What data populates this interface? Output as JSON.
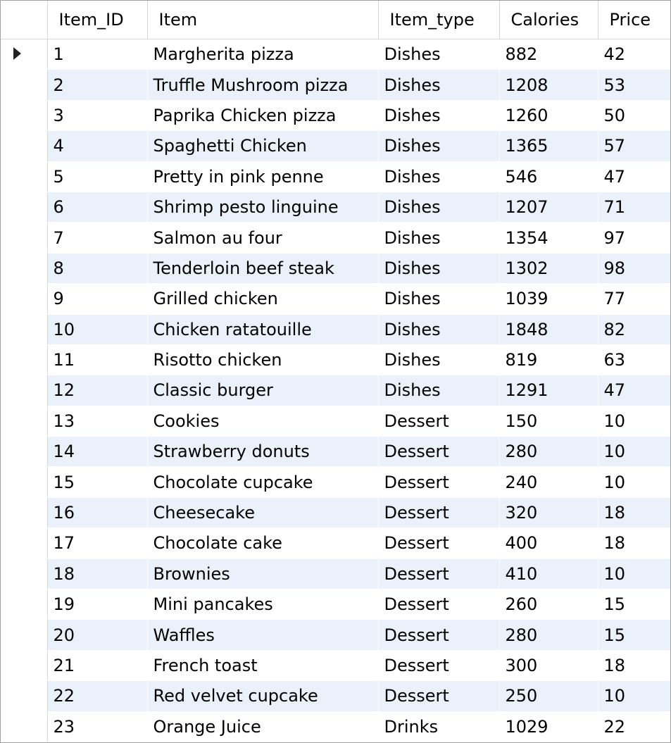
{
  "columns": [
    "Item_ID",
    "Item",
    "Item_type",
    "Calories",
    "Price"
  ],
  "current_row_indicator": "row-pointer-icon",
  "rows": [
    {
      "id": "1",
      "item": "Margherita pizza",
      "type": "Dishes",
      "calories": "882",
      "price": "42"
    },
    {
      "id": "2",
      "item": "Truffle Mushroom pizza",
      "type": "Dishes",
      "calories": "1208",
      "price": "53"
    },
    {
      "id": "3",
      "item": "Paprika Chicken pizza",
      "type": "Dishes",
      "calories": "1260",
      "price": "50"
    },
    {
      "id": "4",
      "item": "Spaghetti Chicken",
      "type": "Dishes",
      "calories": "1365",
      "price": "57"
    },
    {
      "id": "5",
      "item": "Pretty in pink penne",
      "type": "Dishes",
      "calories": "546",
      "price": "47"
    },
    {
      "id": "6",
      "item": "Shrimp pesto linguine",
      "type": "Dishes",
      "calories": "1207",
      "price": "71"
    },
    {
      "id": "7",
      "item": "Salmon au four",
      "type": "Dishes",
      "calories": "1354",
      "price": "97"
    },
    {
      "id": "8",
      "item": "Tenderloin beef steak",
      "type": "Dishes",
      "calories": "1302",
      "price": "98"
    },
    {
      "id": "9",
      "item": "Grilled chicken",
      "type": "Dishes",
      "calories": "1039",
      "price": "77"
    },
    {
      "id": "10",
      "item": "Chicken ratatouille",
      "type": "Dishes",
      "calories": "1848",
      "price": "82"
    },
    {
      "id": "11",
      "item": "Risotto chicken",
      "type": "Dishes",
      "calories": "819",
      "price": "63"
    },
    {
      "id": "12",
      "item": "Classic burger",
      "type": "Dishes",
      "calories": "1291",
      "price": "47"
    },
    {
      "id": "13",
      "item": "Cookies",
      "type": "Dessert",
      "calories": "150",
      "price": "10"
    },
    {
      "id": "14",
      "item": "Strawberry donuts",
      "type": "Dessert",
      "calories": "280",
      "price": "10"
    },
    {
      "id": "15",
      "item": "Chocolate cupcake",
      "type": "Dessert",
      "calories": "240",
      "price": "10"
    },
    {
      "id": "16",
      "item": "Cheesecake",
      "type": "Dessert",
      "calories": "320",
      "price": "18"
    },
    {
      "id": "17",
      "item": "Chocolate cake",
      "type": "Dessert",
      "calories": "400",
      "price": "18"
    },
    {
      "id": "18",
      "item": "Brownies",
      "type": "Dessert",
      "calories": "410",
      "price": "10"
    },
    {
      "id": "19",
      "item": "Mini pancakes",
      "type": "Dessert",
      "calories": "260",
      "price": "15"
    },
    {
      "id": "20",
      "item": "Waffles",
      "type": "Dessert",
      "calories": "280",
      "price": "15"
    },
    {
      "id": "21",
      "item": "French toast",
      "type": "Dessert",
      "calories": "300",
      "price": "18"
    },
    {
      "id": "22",
      "item": "Red velvet cupcake",
      "type": "Dessert",
      "calories": "250",
      "price": "10"
    },
    {
      "id": "23",
      "item": "Orange Juice",
      "type": "Drinks",
      "calories": "1029",
      "price": "22"
    }
  ]
}
